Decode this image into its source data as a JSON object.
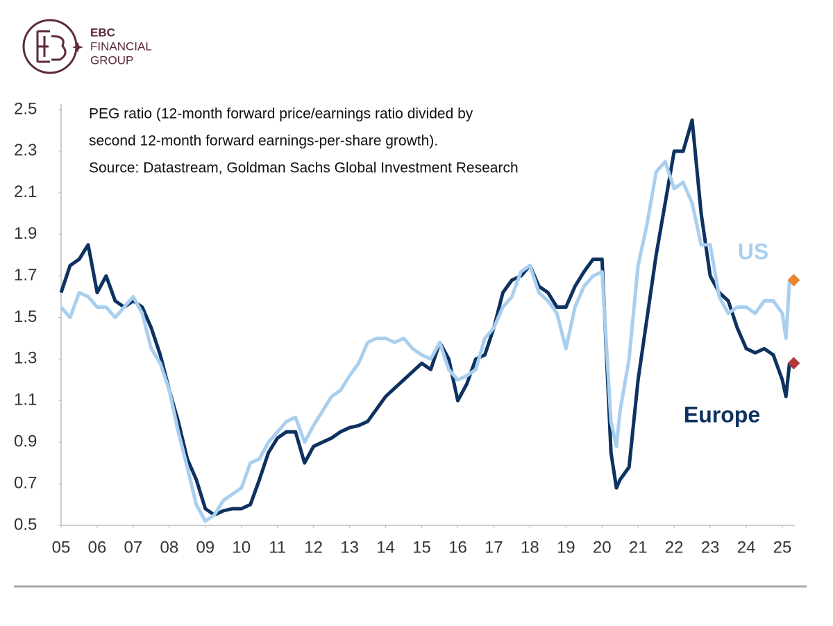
{
  "logo": {
    "lines": [
      "EBC",
      "FINANCIAL",
      "GROUP"
    ]
  },
  "chart_data": {
    "type": "line",
    "annotation_lines": [
      "PEG ratio (12-month forward price/earnings ratio divided by",
      "second 12-month forward earnings-per-share growth).",
      "Source: Datastream, Goldman Sachs Global Investment Research"
    ],
    "x": [
      5.0,
      5.25,
      5.5,
      5.75,
      6.0,
      6.25,
      6.5,
      6.75,
      7.0,
      7.25,
      7.5,
      7.75,
      8.0,
      8.25,
      8.5,
      8.75,
      9.0,
      9.25,
      9.5,
      9.75,
      10.0,
      10.25,
      10.5,
      10.75,
      11.0,
      11.25,
      11.5,
      11.75,
      12.0,
      12.25,
      12.5,
      12.75,
      13.0,
      13.25,
      13.5,
      13.75,
      14.0,
      14.25,
      14.5,
      14.75,
      15.0,
      15.25,
      15.5,
      15.75,
      16.0,
      16.25,
      16.5,
      16.75,
      17.0,
      17.25,
      17.5,
      17.75,
      18.0,
      18.25,
      18.5,
      18.75,
      19.0,
      19.25,
      19.5,
      19.75,
      20.0,
      20.25,
      20.4,
      20.5,
      20.75,
      21.0,
      21.25,
      21.5,
      21.75,
      22.0,
      22.25,
      22.5,
      22.75,
      23.0,
      23.25,
      23.5,
      23.75,
      24.0,
      24.25,
      24.5,
      24.75,
      25.0,
      25.1,
      25.2
    ],
    "series": [
      {
        "name": "Europe",
        "color": "#0d3260",
        "marker_color": "#b03a3a",
        "values": [
          1.62,
          1.75,
          1.78,
          1.85,
          1.62,
          1.7,
          1.58,
          1.55,
          1.58,
          1.55,
          1.45,
          1.32,
          1.15,
          1.0,
          0.82,
          0.72,
          0.58,
          0.55,
          0.57,
          0.58,
          0.58,
          0.6,
          0.72,
          0.85,
          0.92,
          0.95,
          0.95,
          0.8,
          0.88,
          0.9,
          0.92,
          0.95,
          0.97,
          0.98,
          1.0,
          1.06,
          1.12,
          1.16,
          1.2,
          1.24,
          1.28,
          1.25,
          1.38,
          1.3,
          1.1,
          1.18,
          1.3,
          1.32,
          1.45,
          1.62,
          1.68,
          1.7,
          1.75,
          1.65,
          1.62,
          1.55,
          1.55,
          1.65,
          1.72,
          1.78,
          1.78,
          0.85,
          0.68,
          0.72,
          0.78,
          1.2,
          1.5,
          1.8,
          2.05,
          2.3,
          2.3,
          2.45,
          2.0,
          1.7,
          1.62,
          1.58,
          1.45,
          1.35,
          1.33,
          1.35,
          1.32,
          1.2,
          1.12,
          1.28
        ]
      },
      {
        "name": "US",
        "color": "#a9cfee",
        "marker_color": "#e8862f",
        "values": [
          1.55,
          1.5,
          1.62,
          1.6,
          1.55,
          1.55,
          1.5,
          1.55,
          1.6,
          1.52,
          1.35,
          1.28,
          1.15,
          0.95,
          0.78,
          0.6,
          0.52,
          0.55,
          0.62,
          0.65,
          0.68,
          0.8,
          0.82,
          0.9,
          0.95,
          1.0,
          1.02,
          0.9,
          0.98,
          1.05,
          1.12,
          1.15,
          1.22,
          1.28,
          1.38,
          1.4,
          1.4,
          1.38,
          1.4,
          1.35,
          1.32,
          1.3,
          1.38,
          1.25,
          1.2,
          1.22,
          1.25,
          1.4,
          1.45,
          1.55,
          1.6,
          1.72,
          1.75,
          1.62,
          1.58,
          1.52,
          1.35,
          1.55,
          1.65,
          1.7,
          1.72,
          1.0,
          0.88,
          1.05,
          1.3,
          1.75,
          1.95,
          2.2,
          2.25,
          2.12,
          2.15,
          2.05,
          1.85,
          1.85,
          1.6,
          1.52,
          1.55,
          1.55,
          1.52,
          1.58,
          1.58,
          1.52,
          1.4,
          1.68
        ]
      }
    ],
    "xlim": [
      5,
      25.25
    ],
    "xticks": [
      {
        "value": 5,
        "label": "05"
      },
      {
        "value": 6,
        "label": "06"
      },
      {
        "value": 7,
        "label": "07"
      },
      {
        "value": 8,
        "label": "08"
      },
      {
        "value": 9,
        "label": "09"
      },
      {
        "value": 10,
        "label": "10"
      },
      {
        "value": 11,
        "label": "11"
      },
      {
        "value": 12,
        "label": "12"
      },
      {
        "value": 13,
        "label": "13"
      },
      {
        "value": 14,
        "label": "14"
      },
      {
        "value": 15,
        "label": "15"
      },
      {
        "value": 16,
        "label": "16"
      },
      {
        "value": 17,
        "label": "17"
      },
      {
        "value": 18,
        "label": "18"
      },
      {
        "value": 19,
        "label": "19"
      },
      {
        "value": 20,
        "label": "20"
      },
      {
        "value": 21,
        "label": "21"
      },
      {
        "value": 22,
        "label": "22"
      },
      {
        "value": 23,
        "label": "23"
      },
      {
        "value": 24,
        "label": "24"
      },
      {
        "value": 25,
        "label": "25"
      }
    ],
    "ylim": [
      0.5,
      2.5
    ],
    "yticks": [
      0.5,
      0.7,
      0.9,
      1.1,
      1.3,
      1.5,
      1.7,
      1.9,
      2.1,
      2.3,
      2.5
    ],
    "grid": false
  }
}
